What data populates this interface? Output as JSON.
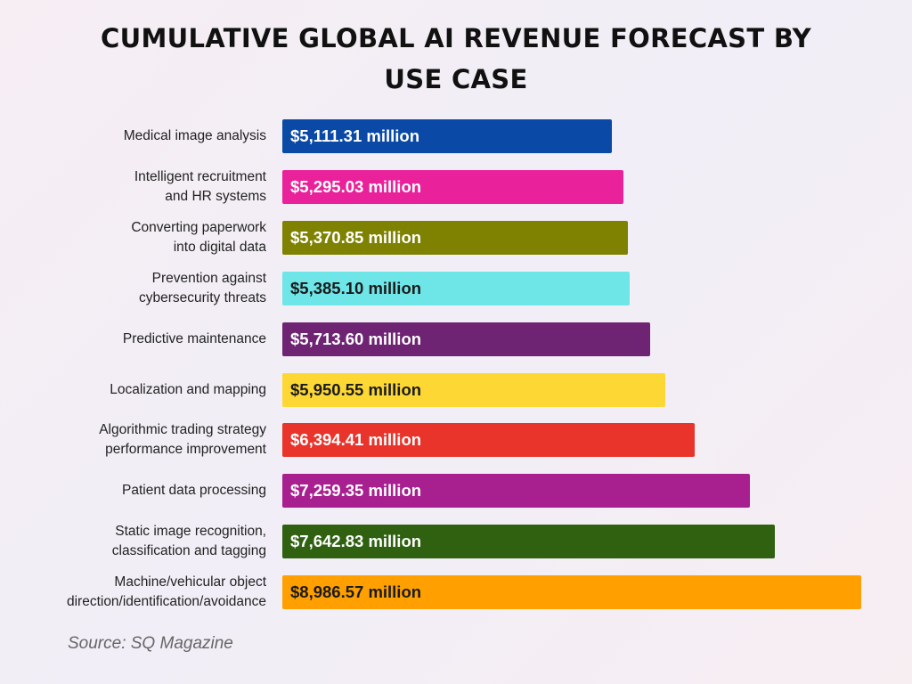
{
  "chart_data": {
    "type": "bar",
    "orientation": "horizontal",
    "title": "CUMULATIVE GLOBAL AI REVENUE FORECAST BY USE CASE",
    "categories": [
      "Medical image analysis",
      "Intelligent recruitment\nand HR systems",
      "Converting paperwork\ninto digital data",
      "Prevention against\ncybersecurity threats",
      "Predictive maintenance",
      "Localization and mapping",
      "Algorithmic trading strategy\nperformance improvement",
      "Patient data processing",
      "Static image recognition,\nclassification and tagging",
      "Machine/vehicular object\ndirection/identification/avoidance"
    ],
    "values": [
      5111.31,
      5295.03,
      5370.85,
      5385.1,
      5713.6,
      5950.55,
      6394.41,
      7259.35,
      7642.83,
      8986.57
    ],
    "value_labels": [
      "$5,111.31 million",
      "$5,295.03 million",
      "$5,370.85 million",
      "$5,385.10 million",
      "$5,713.60 million",
      "$5,950.55 million",
      "$6,394.41 million",
      "$7,259.35 million",
      "$7,642.83 million",
      "$8,986.57 million"
    ],
    "colors": [
      "#0a4aa6",
      "#e9219a",
      "#7e8200",
      "#6ee6e8",
      "#6e2473",
      "#fdd835",
      "#e8342a",
      "#a8208f",
      "#2f6111",
      "#ffa000"
    ],
    "source": "Source: SQ Magazine"
  }
}
